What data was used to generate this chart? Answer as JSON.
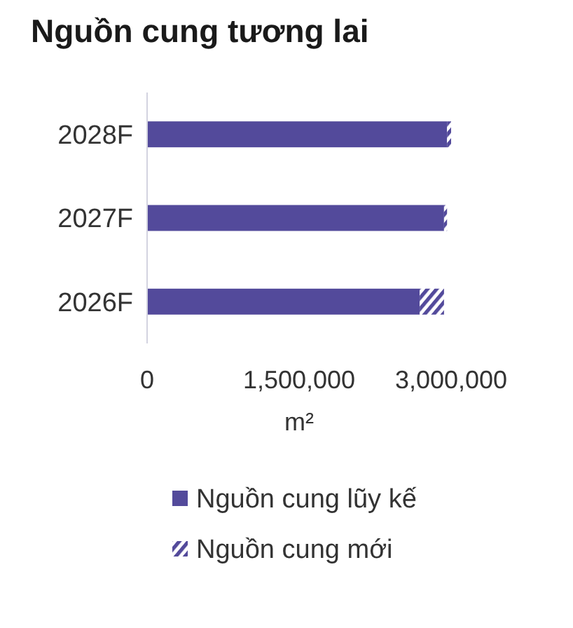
{
  "chart_data": {
    "type": "bar",
    "title": "Nguồn cung tương lai",
    "orientation": "horizontal",
    "stacked": true,
    "categories": [
      "2028F",
      "2027F",
      "2026F"
    ],
    "series": [
      {
        "name": "Nguồn cung lũy kế",
        "color": "#534a9b",
        "values": [
          2960000,
          2930000,
          2690000
        ]
      },
      {
        "name": "Nguồn cung mới",
        "color": "#534a9b",
        "values": [
          40000,
          30000,
          240000
        ]
      }
    ],
    "xlim": [
      0,
      3000000
    ],
    "xticks": [
      0,
      {
        "value": 1500000,
        "label": "1,500,000"
      },
      {
        "value": 3000000,
        "label": "3,000,000"
      }
    ],
    "xlabel": "m²",
    "legend": "bottom"
  }
}
